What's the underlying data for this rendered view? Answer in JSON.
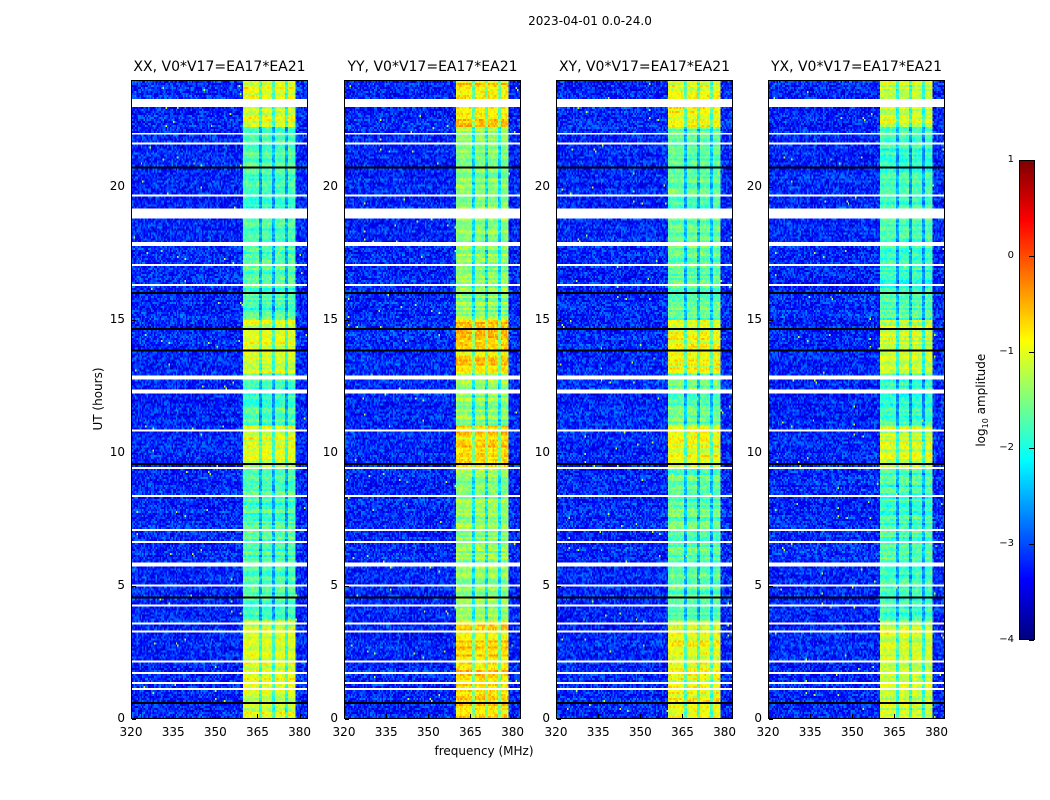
{
  "chart_data": {
    "type": "heatmap",
    "title": "2023-04-01 0.0-24.0",
    "xlabel": "frequency (MHz)",
    "ylabel": "UT (hours)",
    "xlim": [
      320,
      383
    ],
    "ylim": [
      0,
      24
    ],
    "xticks": [
      "320",
      "335",
      "350",
      "365",
      "380"
    ],
    "xtick_values": [
      320,
      335,
      350,
      365,
      380
    ],
    "yticks": [
      "0",
      "5",
      "10",
      "15",
      "20"
    ],
    "ytick_values": [
      0,
      5,
      10,
      15,
      20
    ],
    "colormap": "jet",
    "colorbar": {
      "label_main": "log",
      "label_sub": "10",
      "label_rest": " amplitude",
      "range": [
        -4,
        1
      ],
      "ticks": [
        "1",
        "0",
        "−1",
        "−2",
        "−3",
        "−4"
      ],
      "tick_values": [
        1,
        0,
        -1,
        -2,
        -3,
        -4
      ]
    },
    "panels": [
      {
        "title": "XX, V0*V17=EA17*EA21",
        "band_level": -1.4,
        "band_end": 379
      },
      {
        "title": "YY, V0*V17=EA17*EA21",
        "band_level": -1.05,
        "band_end": 379
      },
      {
        "title": "XY, V0*V17=EA17*EA21",
        "band_level": -1.3,
        "band_end": 379
      },
      {
        "title": "YX, V0*V17=EA17*EA21",
        "band_level": -1.45,
        "band_end": 379
      }
    ],
    "background_level": -3.2,
    "band_start": 360,
    "band_gaps_mhz": [
      366,
      371,
      375.5
    ],
    "bright_periods_hours": [
      [
        0,
        3.7
      ],
      [
        9.4,
        11
      ],
      [
        13,
        15
      ],
      [
        22.3,
        24
      ]
    ],
    "flagged_hours": [
      [
        23.05,
        23.3
      ],
      [
        18.85,
        19.2
      ],
      [
        17.8,
        17.95
      ],
      [
        12.75,
        12.9
      ],
      [
        12.25,
        12.35
      ],
      [
        10.8,
        10.9
      ],
      [
        9.35,
        9.45
      ],
      [
        5.7,
        5.85
      ],
      [
        3.5,
        3.6
      ],
      [
        3.25,
        3.32
      ],
      [
        1.05,
        1.1
      ],
      [
        1.3,
        1.35
      ],
      [
        1.65,
        1.7
      ],
      [
        2.1,
        2.15
      ],
      [
        6.6,
        6.65
      ],
      [
        7.05,
        7.1
      ],
      [
        7.55,
        7.6
      ],
      [
        8.35,
        8.4
      ],
      [
        8.75,
        8.8
      ],
      [
        4.95,
        5.0
      ],
      [
        4.2,
        4.25
      ],
      [
        15.2,
        15.25
      ],
      [
        16.3,
        16.35
      ],
      [
        17.05,
        17.1
      ],
      [
        19.65,
        19.7
      ],
      [
        20.3,
        20.35
      ],
      [
        21.6,
        21.65
      ],
      [
        22.0,
        22.05
      ]
    ],
    "dead_hours": [
      [
        20.7,
        20.8
      ],
      [
        0.55,
        0.62
      ],
      [
        4.5,
        4.6
      ],
      [
        9.55,
        9.6
      ],
      [
        13.8,
        13.85
      ],
      [
        14.6,
        14.7
      ],
      [
        16.0,
        16.05
      ],
      [
        23.6,
        23.65
      ],
      [
        11.6,
        11.65
      ]
    ]
  }
}
